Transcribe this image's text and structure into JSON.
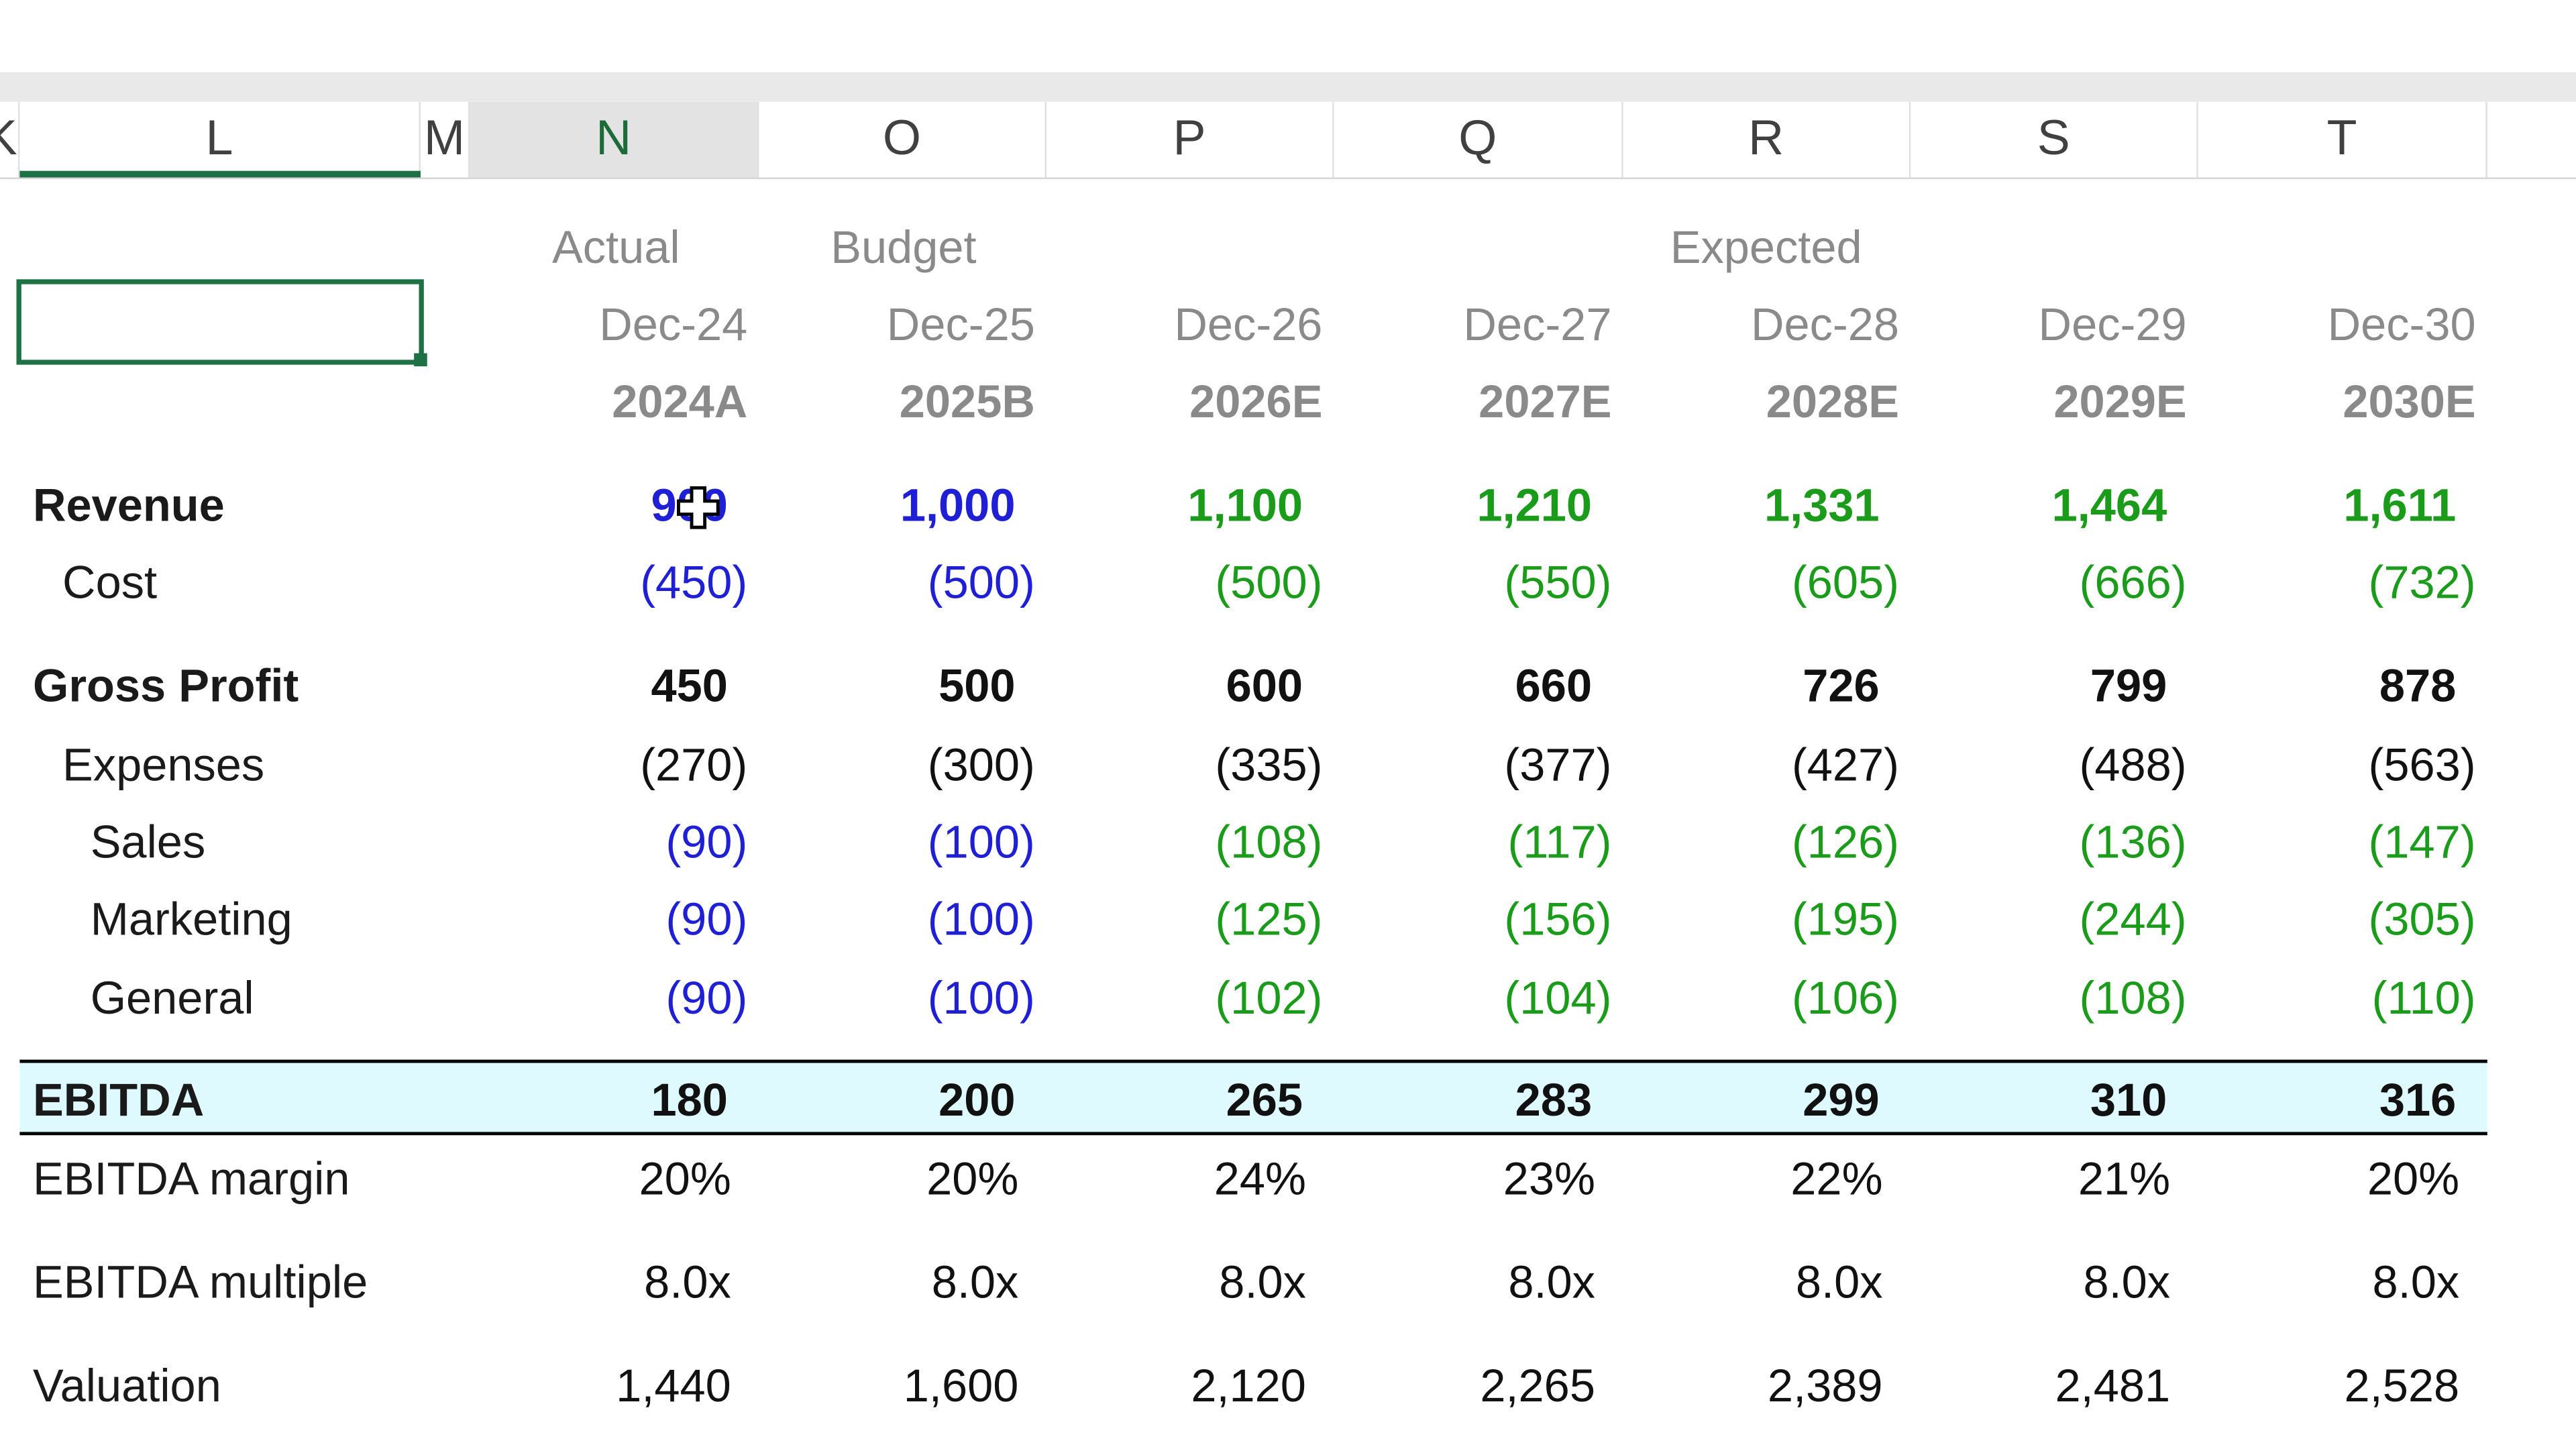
{
  "columns": [
    "K",
    "L",
    "M",
    "N",
    "O",
    "P",
    "Q",
    "R",
    "S",
    "T"
  ],
  "header_rows": {
    "scenario": {
      "N": "Actual",
      "O": "Budget",
      "R": "Expected"
    },
    "dates": [
      "Dec-24",
      "Dec-25",
      "Dec-26",
      "Dec-27",
      "Dec-28",
      "Dec-29",
      "Dec-30"
    ],
    "periods": [
      "2024A",
      "2025B",
      "2026E",
      "2027E",
      "2028E",
      "2029E",
      "2030E"
    ]
  },
  "rows": [
    {
      "label": "Revenue",
      "values": [
        "900",
        "1,000",
        "1,100",
        "1,210",
        "1,331",
        "1,464",
        "1,611"
      ]
    },
    {
      "label": "Cost",
      "values": [
        "(450)",
        "(500)",
        "(500)",
        "(550)",
        "(605)",
        "(666)",
        "(732)"
      ]
    },
    {
      "label": "Gross Profit",
      "values": [
        "450",
        "500",
        "600",
        "660",
        "726",
        "799",
        "878"
      ]
    },
    {
      "label": "Expenses",
      "values": [
        "(270)",
        "(300)",
        "(335)",
        "(377)",
        "(427)",
        "(488)",
        "(563)"
      ]
    },
    {
      "label": "Sales",
      "values": [
        "(90)",
        "(100)",
        "(108)",
        "(117)",
        "(126)",
        "(136)",
        "(147)"
      ]
    },
    {
      "label": "Marketing",
      "values": [
        "(90)",
        "(100)",
        "(125)",
        "(156)",
        "(195)",
        "(244)",
        "(305)"
      ]
    },
    {
      "label": "General",
      "values": [
        "(90)",
        "(100)",
        "(102)",
        "(104)",
        "(106)",
        "(108)",
        "(110)"
      ]
    },
    {
      "label": "EBITDA",
      "values": [
        "180",
        "200",
        "265",
        "283",
        "299",
        "310",
        "316"
      ]
    },
    {
      "label": "EBITDA margin",
      "values": [
        "20%",
        "20%",
        "24%",
        "23%",
        "22%",
        "21%",
        "20%"
      ]
    },
    {
      "label": "EBITDA multiple",
      "values": [
        "8.0x",
        "8.0x",
        "8.0x",
        "8.0x",
        "8.0x",
        "8.0x",
        "8.0x"
      ]
    },
    {
      "label": "Valuation",
      "values": [
        "1,440",
        "1,600",
        "2,120",
        "2,265",
        "2,389",
        "2,481",
        "2,528"
      ]
    }
  ],
  "colors": {
    "input_blue": "#1f1fd6",
    "forecast_green": "#1a9c1a",
    "header_gray": "#8a8a8a",
    "ebitda_highlight": "#dffaff",
    "selection_green": "#1e7145"
  },
  "cursor_icon": "move-cross-cursor-icon"
}
